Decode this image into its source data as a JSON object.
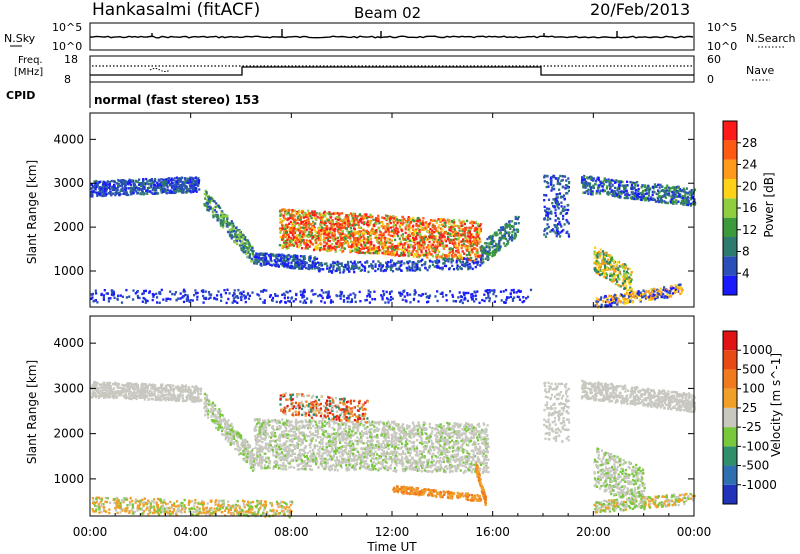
{
  "header": {
    "station": "Hankasalmi (fitACF)",
    "beam": "Beam 02",
    "date": "20/Feb/2013"
  },
  "summary_panels": {
    "nsky_label": "N.Sky",
    "nsky_top": "10^5",
    "nsky_bottom": "10^0",
    "nsearch_label": "N.Search",
    "nsearch_top": "10^5",
    "nsearch_bottom": "10^0",
    "freq_label_1": "Freq.",
    "freq_label_2": "[MHz]",
    "freq_top": "18",
    "freq_bottom": "8",
    "nave_label": "Nave",
    "nave_top": "60",
    "nave_bottom": "0",
    "cpid_label": "CPID",
    "cpid_text": "normal (fast stereo) 153"
  },
  "colors": {
    "background": "#ffffff",
    "axis": "#000000",
    "grey_scatter": "#c8c8c0"
  },
  "chart_data": [
    {
      "type": "heatmap",
      "ylabel": "Slant Range [km]",
      "xlabel": "Time UT",
      "x_ticks": [
        "00:00",
        "04:00",
        "08:00",
        "12:00",
        "16:00",
        "20:00",
        "00:00"
      ],
      "xlim": [
        0,
        24
      ],
      "y_ticks": [
        1000,
        2000,
        3000,
        4000
      ],
      "ylim": [
        180,
        4600
      ],
      "colorbar": {
        "label": "Power [dB]",
        "ticks": [
          "4",
          "8",
          "12",
          "16",
          "20",
          "24",
          "28"
        ],
        "colors": [
          "#1a1aff",
          "#2b4fb8",
          "#2f7a6f",
          "#3c9a3c",
          "#8fcf3f",
          "#ffd21a",
          "#ff9a1a",
          "#ff5a14",
          "#ff1a1a"
        ]
      },
      "grid": false
    },
    {
      "type": "heatmap",
      "ylabel": "Slant Range [km]",
      "xlabel": "Time UT",
      "x_ticks": [
        "00:00",
        "04:00",
        "08:00",
        "12:00",
        "16:00",
        "20:00",
        "00:00"
      ],
      "xlim": [
        0,
        24
      ],
      "y_ticks": [
        1000,
        2000,
        3000,
        4000
      ],
      "ylim": [
        180,
        4600
      ],
      "colorbar": {
        "label": "Velocity [m s^-1]",
        "ticks": [
          "1000",
          "500",
          "100",
          "25",
          "-25",
          "-100",
          "-500",
          "-1000"
        ],
        "colors": [
          "#2233bb",
          "#2e6fb0",
          "#2f8f6a",
          "#78c83c",
          "#c8c8c0",
          "#f0a028",
          "#f07a1e",
          "#e84a14",
          "#e01414"
        ]
      },
      "grid": false
    }
  ]
}
